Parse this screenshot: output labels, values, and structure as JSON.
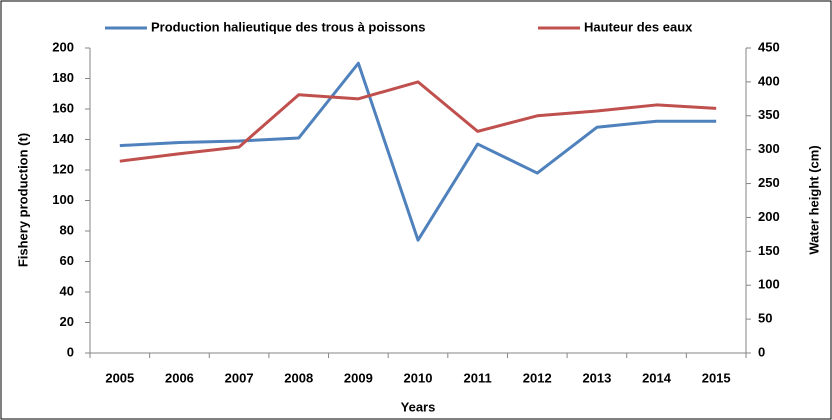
{
  "chart_data": {
    "type": "line",
    "x_label": "Years",
    "y_label": "Fishery production (t)",
    "y2_label": "Water height (cm)",
    "categories": [
      "2005",
      "2006",
      "2007",
      "2008",
      "2009",
      "2010",
      "2011",
      "2012",
      "2013",
      "2014",
      "2015"
    ],
    "series": [
      {
        "name": "Production halieutique des trous à poissons",
        "color": "#4f81bd",
        "values": [
          136,
          138,
          139,
          141,
          190,
          74,
          137,
          118,
          148,
          152,
          152
        ]
      },
      {
        "name": "Hauteur des eaux",
        "color": "#c0504d",
        "axis": "y2",
        "values": [
          283,
          294,
          304,
          381,
          375,
          400,
          327,
          350,
          357,
          366,
          361
        ]
      }
    ],
    "ylim": [
      0,
      200
    ],
    "yticks": [
      0,
      20,
      40,
      60,
      80,
      100,
      120,
      140,
      160,
      180,
      200
    ],
    "y2lim": [
      0,
      450
    ],
    "y2ticks": [
      0,
      50,
      100,
      150,
      200,
      250,
      300,
      350,
      400,
      450
    ],
    "grid": false,
    "legend": "top"
  }
}
